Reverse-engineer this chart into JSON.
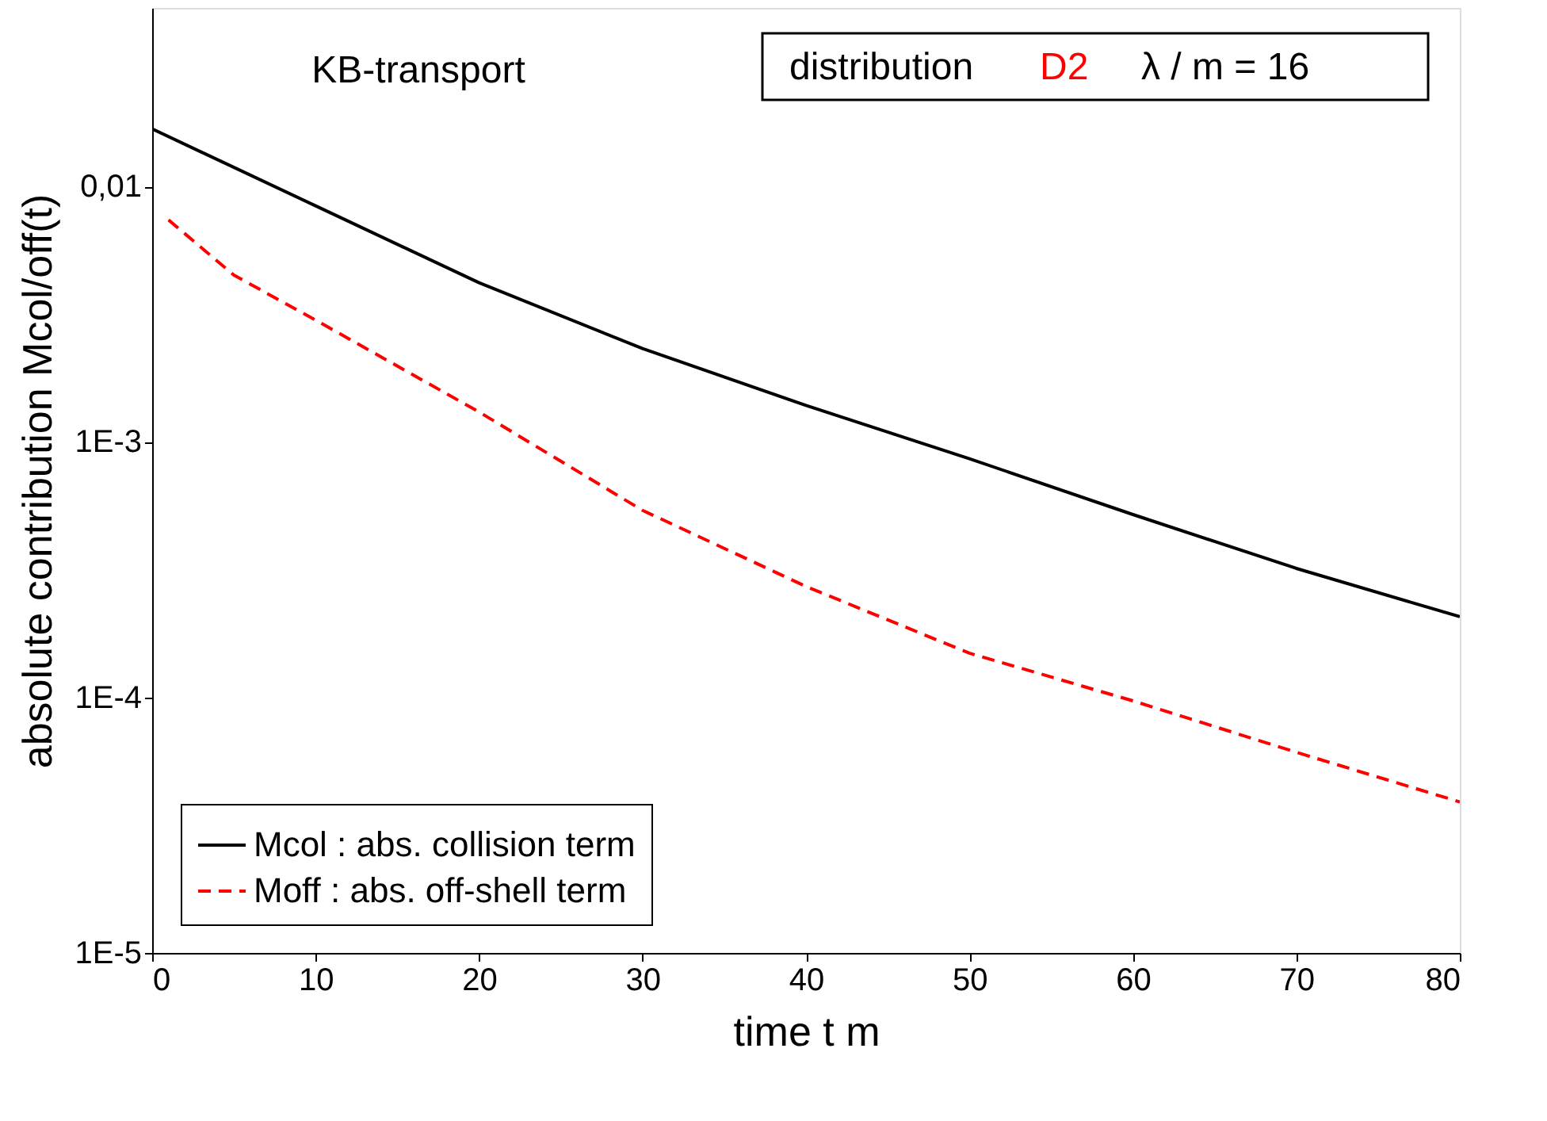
{
  "chart_data": {
    "type": "line",
    "xlabel": "time  t m",
    "ylabel": "absolute contribution  Mcol/off(t)",
    "annotations": [
      "KB-transport",
      "distribution",
      "D2",
      "λ / m = 16"
    ],
    "xlim": [
      0,
      80
    ],
    "xticks": [
      0,
      10,
      20,
      30,
      40,
      50,
      60,
      70,
      80
    ],
    "ylim": [
      1e-05,
      0.05
    ],
    "log": true,
    "yticks": [
      {
        "value": 0.01,
        "label": "0,01"
      },
      {
        "value": 0.001,
        "label": "1E-3"
      },
      {
        "value": 0.0001,
        "label": "1E-4"
      },
      {
        "value": 1e-05,
        "label": "1E-5"
      }
    ],
    "legend": "bottom left",
    "grid": false,
    "series": [
      {
        "name": "Mcol : abs. collision term",
        "color": "#000000",
        "line_style": "solid",
        "x": [
          0,
          10,
          20,
          30,
          40,
          50,
          60,
          70,
          80
        ],
        "values": [
          0.0168,
          0.0084,
          0.0042,
          0.00232,
          0.00139,
          0.00086,
          0.00052,
          0.00032,
          0.000207
        ]
      },
      {
        "name": "Moff : abs. off-shell term",
        "color": "#ff0000",
        "line_style": "dashed",
        "x": [
          1,
          5,
          10,
          20,
          30,
          40,
          50,
          60,
          70,
          80
        ],
        "values": [
          0.0074,
          0.0045,
          0.003,
          0.00131,
          0.00054,
          0.000272,
          0.000149,
          9.7e-05,
          6.1e-05,
          3.9e-05
        ]
      }
    ]
  }
}
